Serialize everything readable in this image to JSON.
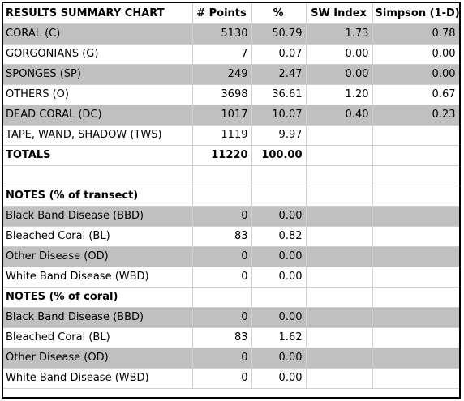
{
  "header": {
    "title": "RESULTS SUMMARY CHART",
    "col_points": "# Points",
    "col_pct": "%",
    "col_sw": "SW Index",
    "col_simpson": "Simpson (1-D)"
  },
  "results": [
    {
      "label": "CORAL (C)",
      "points": "5130",
      "pct": "50.79",
      "sw": "1.73",
      "simpson": "0.78"
    },
    {
      "label": "GORGONIANS (G)",
      "points": "7",
      "pct": "0.07",
      "sw": "0.00",
      "simpson": "0.00"
    },
    {
      "label": "SPONGES (SP)",
      "points": "249",
      "pct": "2.47",
      "sw": "0.00",
      "simpson": "0.00"
    },
    {
      "label": "OTHERS (O)",
      "points": "3698",
      "pct": "36.61",
      "sw": "1.20",
      "simpson": "0.67"
    },
    {
      "label": "DEAD CORAL (DC)",
      "points": "1017",
      "pct": "10.07",
      "sw": "0.40",
      "simpson": "0.23"
    },
    {
      "label": "TAPE, WAND, SHADOW (TWS)",
      "points": "1119",
      "pct": "9.97"
    }
  ],
  "totals": {
    "label": "TOTALS",
    "points": "11220",
    "pct": "100.00"
  },
  "notes_transect": {
    "heading": "NOTES (% of transect)",
    "rows": [
      {
        "label": "Black Band Disease (BBD)",
        "points": "0",
        "pct": "0.00"
      },
      {
        "label": "Bleached Coral (BL)",
        "points": "83",
        "pct": "0.82"
      },
      {
        "label": "Other Disease (OD)",
        "points": "0",
        "pct": "0.00"
      },
      {
        "label": "White Band Disease (WBD)",
        "points": "0",
        "pct": "0.00"
      }
    ]
  },
  "notes_coral": {
    "heading": "NOTES (% of coral)",
    "rows": [
      {
        "label": "Black Band Disease (BBD)",
        "points": "0",
        "pct": "0.00"
      },
      {
        "label": "Bleached Coral (BL)",
        "points": "83",
        "pct": "1.62"
      },
      {
        "label": "Other Disease (OD)",
        "points": "0",
        "pct": "0.00"
      },
      {
        "label": "White Band Disease (WBD)",
        "points": "0",
        "pct": "0.00"
      }
    ]
  },
  "colors": {
    "shade": "#c0c0c0",
    "grid": "#d0d0d0",
    "border": "#000000"
  }
}
